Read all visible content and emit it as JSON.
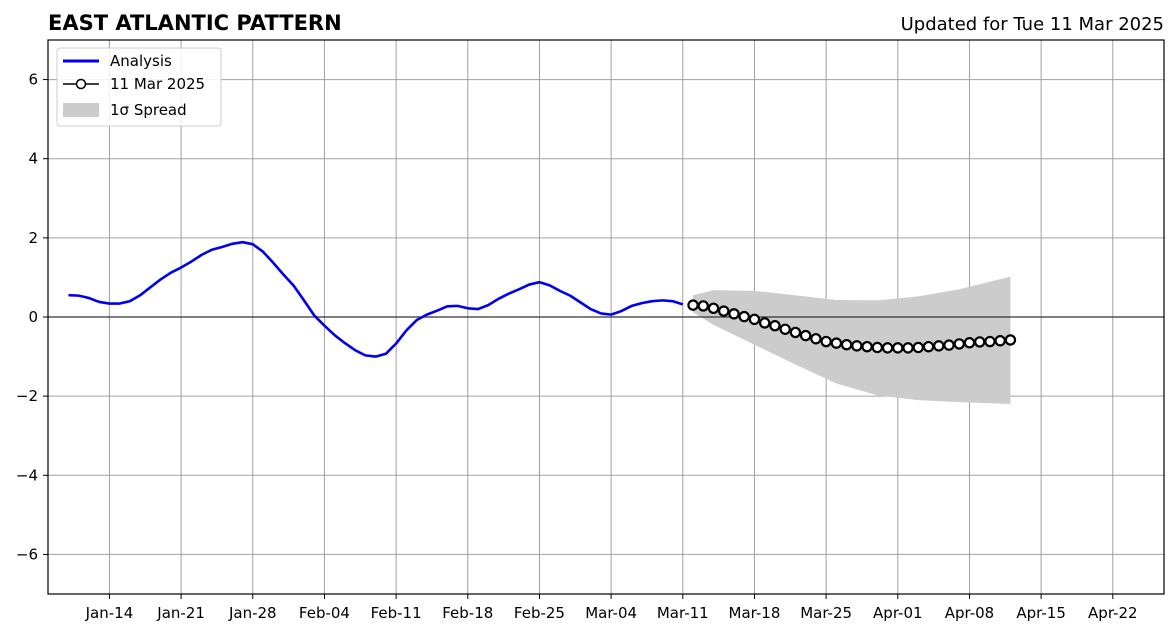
{
  "chart_data": {
    "type": "line",
    "title": "EAST ATLANTIC PATTERN",
    "subtitle": "Updated for Tue 11 Mar 2025",
    "xlabel": "",
    "ylabel": "",
    "ylim": [
      -7,
      7
    ],
    "xlim": [
      "2025-01-08",
      "2025-04-27"
    ],
    "y_ticks": [
      -6,
      -4,
      -2,
      0,
      2,
      4,
      6
    ],
    "y_tick_labels": [
      "−6",
      "−4",
      "−2",
      "0",
      "2",
      "4",
      "6"
    ],
    "x_ticks": [
      "2025-01-14",
      "2025-01-21",
      "2025-01-28",
      "2025-02-04",
      "2025-02-11",
      "2025-02-18",
      "2025-02-25",
      "2025-03-04",
      "2025-03-11",
      "2025-03-18",
      "2025-03-25",
      "2025-04-01",
      "2025-04-08",
      "2025-04-15",
      "2025-04-22"
    ],
    "x_tick_labels": [
      "Jan-14",
      "Jan-21",
      "Jan-28",
      "Feb-04",
      "Feb-11",
      "Feb-18",
      "Feb-25",
      "Mar-04",
      "Mar-11",
      "Mar-18",
      "Mar-25",
      "Apr-01",
      "Apr-08",
      "Apr-15",
      "Apr-22"
    ],
    "grid": true,
    "zero_line": true,
    "legend_position": "top-left",
    "series": [
      {
        "name": "Analysis",
        "color": "#0000ee",
        "style": "line",
        "x": [
          "2025-01-10",
          "2025-01-11",
          "2025-01-12",
          "2025-01-13",
          "2025-01-14",
          "2025-01-15",
          "2025-01-16",
          "2025-01-17",
          "2025-01-18",
          "2025-01-19",
          "2025-01-20",
          "2025-01-21",
          "2025-01-22",
          "2025-01-23",
          "2025-01-24",
          "2025-01-25",
          "2025-01-26",
          "2025-01-27",
          "2025-01-28",
          "2025-01-29",
          "2025-01-30",
          "2025-01-31",
          "2025-02-01",
          "2025-02-02",
          "2025-02-03",
          "2025-02-04",
          "2025-02-05",
          "2025-02-06",
          "2025-02-07",
          "2025-02-08",
          "2025-02-09",
          "2025-02-10",
          "2025-02-11",
          "2025-02-12",
          "2025-02-13",
          "2025-02-14",
          "2025-02-15",
          "2025-02-16",
          "2025-02-17",
          "2025-02-18",
          "2025-02-19",
          "2025-02-20",
          "2025-02-21",
          "2025-02-22",
          "2025-02-23",
          "2025-02-24",
          "2025-02-25",
          "2025-02-26",
          "2025-02-27",
          "2025-02-28",
          "2025-03-01",
          "2025-03-02",
          "2025-03-03",
          "2025-03-04",
          "2025-03-05",
          "2025-03-06",
          "2025-03-07",
          "2025-03-08",
          "2025-03-09",
          "2025-03-10",
          "2025-03-11"
        ],
        "values": [
          0.55,
          0.54,
          0.48,
          0.38,
          0.34,
          0.34,
          0.4,
          0.55,
          0.75,
          0.95,
          1.12,
          1.25,
          1.4,
          1.57,
          1.7,
          1.77,
          1.85,
          1.89,
          1.84,
          1.65,
          1.37,
          1.07,
          0.79,
          0.42,
          0.04,
          -0.22,
          -0.46,
          -0.66,
          -0.84,
          -0.97,
          -1.0,
          -0.93,
          -0.67,
          -0.34,
          -0.08,
          0.06,
          0.16,
          0.27,
          0.28,
          0.22,
          0.2,
          0.3,
          0.46,
          0.59,
          0.7,
          0.82,
          0.88,
          0.8,
          0.66,
          0.54,
          0.37,
          0.2,
          0.09,
          0.06,
          0.15,
          0.28,
          0.35,
          0.4,
          0.42,
          0.4,
          0.32
        ]
      },
      {
        "name": "11 Mar 2025",
        "color": "#000000",
        "style": "line-with-open-circles",
        "x": [
          "2025-03-12",
          "2025-03-13",
          "2025-03-14",
          "2025-03-15",
          "2025-03-16",
          "2025-03-17",
          "2025-03-18",
          "2025-03-19",
          "2025-03-20",
          "2025-03-21",
          "2025-03-22",
          "2025-03-23",
          "2025-03-24",
          "2025-03-25",
          "2025-03-26",
          "2025-03-27",
          "2025-03-28",
          "2025-03-29",
          "2025-03-30",
          "2025-03-31",
          "2025-04-01",
          "2025-04-02",
          "2025-04-03",
          "2025-04-04",
          "2025-04-05",
          "2025-04-06",
          "2025-04-07",
          "2025-04-08",
          "2025-04-09",
          "2025-04-10",
          "2025-04-11",
          "2025-04-12"
        ],
        "values": [
          0.3,
          0.28,
          0.22,
          0.15,
          0.08,
          0.01,
          -0.06,
          -0.15,
          -0.22,
          -0.31,
          -0.39,
          -0.47,
          -0.55,
          -0.62,
          -0.66,
          -0.7,
          -0.73,
          -0.75,
          -0.77,
          -0.78,
          -0.78,
          -0.78,
          -0.77,
          -0.75,
          -0.73,
          -0.71,
          -0.68,
          -0.65,
          -0.63,
          -0.62,
          -0.6,
          -0.58
        ]
      },
      {
        "name": "1σ Spread",
        "color": "#cccccc",
        "style": "band",
        "x": [
          "2025-03-12",
          "2025-03-14",
          "2025-03-18",
          "2025-03-22",
          "2025-03-26",
          "2025-03-30",
          "2025-04-03",
          "2025-04-07",
          "2025-04-12"
        ],
        "upper": [
          0.55,
          0.68,
          0.66,
          0.55,
          0.43,
          0.42,
          0.52,
          0.7,
          1.02
        ],
        "lower": [
          0.12,
          -0.2,
          -0.7,
          -1.2,
          -1.68,
          -1.98,
          -2.1,
          -2.15,
          -2.2
        ]
      }
    ]
  }
}
